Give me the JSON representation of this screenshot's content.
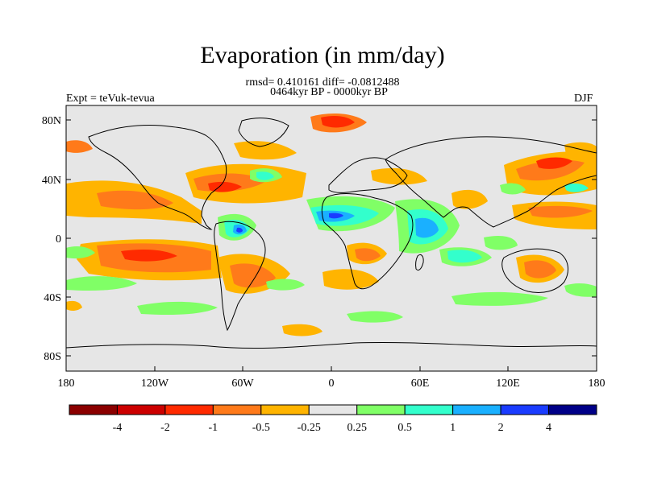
{
  "figure": {
    "title": "Evaporation (in mm/day)",
    "stats_line": "rmsd= 0.410161 diff= -0.0812488",
    "period_line": "0464kyr BP - 0000kyr BP",
    "experiment_label": "Expt = teVuk-tevua",
    "season_label": "DJF"
  },
  "map": {
    "lat_tick_labels": [
      "80N",
      "40N",
      "0",
      "40S",
      "80S"
    ],
    "lon_tick_labels": [
      "180",
      "120W",
      "60W",
      "0",
      "60E",
      "120E",
      "180"
    ],
    "background_color": "#e6e6e6"
  },
  "colorbar": {
    "colors": [
      "#8b0000",
      "#cc0000",
      "#ff2a00",
      "#ff7a1a",
      "#ffb400",
      "#e6e6e6",
      "#80ff66",
      "#33ffcc",
      "#1ab0ff",
      "#1a3cff",
      "#000088"
    ],
    "labels": [
      "-4",
      "-2",
      "-1",
      "-0.5",
      "-0.25",
      "0.25",
      "0.5",
      "1",
      "2",
      "4"
    ]
  }
}
